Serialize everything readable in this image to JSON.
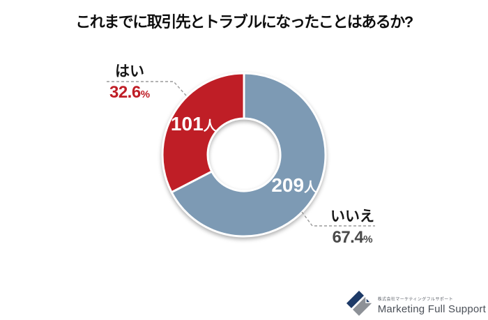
{
  "title": "これまでに取引先とトラブルになったことはあるか?",
  "chart_data": {
    "type": "pie",
    "donut": true,
    "title": "これまでに取引先とトラブルになったことはあるか?",
    "start_angle_deg": -90,
    "direction": "clockwise",
    "legend_position": "none",
    "slices": [
      {
        "label": "いいえ",
        "percent": 67.4,
        "count": 209,
        "percent_label": "67.4",
        "percent_unit": "%",
        "count_label": "209",
        "count_unit": "人",
        "color": "#7d9ab4",
        "callout_color": "#4a4a4a"
      },
      {
        "label": "はい",
        "percent": 32.6,
        "count": 101,
        "percent_label": "32.6",
        "percent_unit": "%",
        "count_label": "101",
        "count_unit": "人",
        "color": "#bf1e26",
        "callout_color": "#bf1e26"
      }
    ]
  },
  "footer_logo": {
    "company_jp": "株式会社マーケティングフルサポート",
    "company_en": "Marketing Full Support",
    "navy": "#1d3a67",
    "gray": "#8d9197"
  }
}
